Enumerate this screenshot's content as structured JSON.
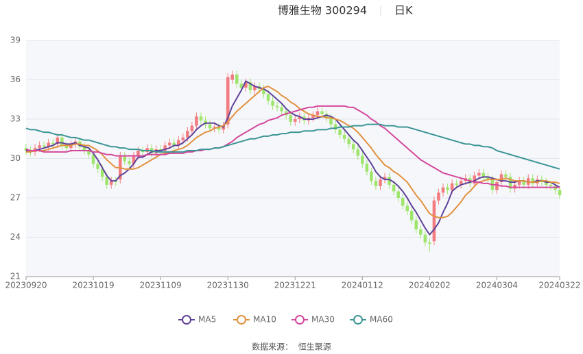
{
  "chart_data": {
    "type": "candlestick",
    "title": "博雅生物 300294",
    "subtitle": "日K",
    "source": "数据来源：  恒生聚源",
    "categories": [
      "20230920",
      null,
      null,
      null,
      null,
      null,
      null,
      null,
      null,
      null,
      null,
      null,
      null,
      null,
      null,
      "20231019",
      null,
      null,
      null,
      null,
      null,
      null,
      null,
      null,
      null,
      null,
      null,
      null,
      null,
      null,
      "20231109",
      null,
      null,
      null,
      null,
      null,
      null,
      null,
      null,
      null,
      null,
      null,
      null,
      null,
      null,
      "20231130",
      null,
      null,
      null,
      null,
      null,
      null,
      null,
      null,
      null,
      null,
      null,
      null,
      null,
      null,
      "20231221",
      null,
      null,
      null,
      null,
      null,
      null,
      null,
      null,
      null,
      null,
      null,
      null,
      null,
      null,
      "20240112",
      null,
      null,
      null,
      null,
      null,
      null,
      null,
      null,
      null,
      null,
      null,
      null,
      null,
      null,
      "20240202",
      null,
      null,
      null,
      null,
      null,
      null,
      null,
      null,
      null,
      null,
      null,
      null,
      null,
      null,
      "20240304",
      null,
      null,
      null,
      null,
      null,
      null,
      null,
      null,
      null,
      null,
      null,
      null,
      null,
      "20240322"
    ],
    "open": [
      30.8,
      30.6,
      30.5,
      30.8,
      31.0,
      30.9,
      31.2,
      31.1,
      31.6,
      31.0,
      30.8,
      31.1,
      31.3,
      30.9,
      30.6,
      30.3,
      29.6,
      29.2,
      28.6,
      28.0,
      28.3,
      28.4,
      30.2,
      29.8,
      29.6,
      30.2,
      30.6,
      30.5,
      30.8,
      30.4,
      30.7,
      30.6,
      31.0,
      31.2,
      31.0,
      31.4,
      31.6,
      32.1,
      32.5,
      33.2,
      32.9,
      32.6,
      32.3,
      32.4,
      32.2,
      32.6,
      36.0,
      36.4,
      35.7,
      35.4,
      35.8,
      35.2,
      35.5,
      35.3,
      34.9,
      34.4,
      34.0,
      33.9,
      33.6,
      33.3,
      32.8,
      33.0,
      33.2,
      32.9,
      33.1,
      33.3,
      33.6,
      33.4,
      33.1,
      32.6,
      32.2,
      31.8,
      31.5,
      31.1,
      30.7,
      30.2,
      29.6,
      29.0,
      28.3,
      27.9,
      28.4,
      28.6,
      28.0,
      27.5,
      27.0,
      26.4,
      26.0,
      25.3,
      24.6,
      24.2,
      23.6,
      23.7,
      26.8,
      27.4,
      27.8,
      27.6,
      28.1,
      28.0,
      28.3,
      28.5,
      28.1,
      28.7,
      28.9,
      28.6,
      28.4,
      27.6,
      28.2,
      28.8,
      28.6,
      27.7,
      28.0,
      28.3,
      28.0,
      28.5,
      28.1,
      28.4,
      28.2,
      28.0,
      27.9,
      27.6
    ],
    "close": [
      30.6,
      30.5,
      30.8,
      31.0,
      30.9,
      31.2,
      31.1,
      31.6,
      31.0,
      30.8,
      31.1,
      31.3,
      30.9,
      30.6,
      30.3,
      29.6,
      29.2,
      28.6,
      28.0,
      28.3,
      28.2,
      30.2,
      29.8,
      29.6,
      30.2,
      30.6,
      30.5,
      30.8,
      30.4,
      30.7,
      30.6,
      31.0,
      31.2,
      31.0,
      31.4,
      31.6,
      32.1,
      32.5,
      33.2,
      32.9,
      32.6,
      32.3,
      32.4,
      32.2,
      32.5,
      36.2,
      36.4,
      35.7,
      35.4,
      35.8,
      35.2,
      35.5,
      35.3,
      34.9,
      34.4,
      34.0,
      33.9,
      33.6,
      33.3,
      32.8,
      33.0,
      33.2,
      32.9,
      33.1,
      33.3,
      33.6,
      33.4,
      33.1,
      32.6,
      32.2,
      31.8,
      31.5,
      31.1,
      30.7,
      30.2,
      29.6,
      29.0,
      28.3,
      27.9,
      28.4,
      28.6,
      28.0,
      27.5,
      27.0,
      26.4,
      26.0,
      25.3,
      24.6,
      24.2,
      23.6,
      23.5,
      26.8,
      27.4,
      27.8,
      27.6,
      28.1,
      28.0,
      28.3,
      28.5,
      28.1,
      28.7,
      28.9,
      28.6,
      28.4,
      27.6,
      28.2,
      28.8,
      28.6,
      27.7,
      28.0,
      28.3,
      28.0,
      28.5,
      28.1,
      28.4,
      28.2,
      28.0,
      27.9,
      27.6,
      27.2
    ],
    "low": [
      30.3,
      30.2,
      30.2,
      30.5,
      30.6,
      30.6,
      30.8,
      30.8,
      30.7,
      30.5,
      30.5,
      30.8,
      30.6,
      30.3,
      30.0,
      29.3,
      28.9,
      28.3,
      27.7,
      27.7,
      27.9,
      28.1,
      29.5,
      29.3,
      29.3,
      29.9,
      30.2,
      30.2,
      30.1,
      30.1,
      30.3,
      30.3,
      30.7,
      30.7,
      30.7,
      31.1,
      31.3,
      31.8,
      32.2,
      32.6,
      32.3,
      32.0,
      32.0,
      31.9,
      31.9,
      32.3,
      35.7,
      35.4,
      35.1,
      35.1,
      34.9,
      34.9,
      35.0,
      34.6,
      34.1,
      33.7,
      33.6,
      33.3,
      33.0,
      32.5,
      32.5,
      32.7,
      32.6,
      32.6,
      32.8,
      33.0,
      33.1,
      32.8,
      32.3,
      31.9,
      31.5,
      31.2,
      30.8,
      30.4,
      29.9,
      29.3,
      28.7,
      28.0,
      27.6,
      27.6,
      28.1,
      27.7,
      27.2,
      26.7,
      26.1,
      25.7,
      25.0,
      24.3,
      23.9,
      23.3,
      22.9,
      23.4,
      26.5,
      27.1,
      27.3,
      27.3,
      27.7,
      27.7,
      28.0,
      27.8,
      27.8,
      28.4,
      28.3,
      28.1,
      27.3,
      27.3,
      27.9,
      28.3,
      27.4,
      27.4,
      27.7,
      27.7,
      27.7,
      27.8,
      27.8,
      27.9,
      27.7,
      27.6,
      27.3,
      26.9
    ],
    "high": [
      31.1,
      30.9,
      31.1,
      31.3,
      31.3,
      31.5,
      31.5,
      31.9,
      31.9,
      31.3,
      31.4,
      31.6,
      31.6,
      31.2,
      30.9,
      30.6,
      29.9,
      29.5,
      28.9,
      28.6,
      28.6,
      30.5,
      30.5,
      30.1,
      30.5,
      30.9,
      30.9,
      31.1,
      31.1,
      31.0,
      31.0,
      31.3,
      31.5,
      31.5,
      31.7,
      31.9,
      32.4,
      32.8,
      33.5,
      33.5,
      33.2,
      32.9,
      32.7,
      32.7,
      32.8,
      36.5,
      36.7,
      36.7,
      36.0,
      36.1,
      36.1,
      35.8,
      35.8,
      35.6,
      35.2,
      34.7,
      34.3,
      34.2,
      33.9,
      33.6,
      33.3,
      33.5,
      33.5,
      33.4,
      33.6,
      33.9,
      33.9,
      33.7,
      33.4,
      32.9,
      32.5,
      32.1,
      31.8,
      31.4,
      31.0,
      30.5,
      29.9,
      29.3,
      28.6,
      28.7,
      28.9,
      28.9,
      28.3,
      27.8,
      27.3,
      26.7,
      26.3,
      25.6,
      24.9,
      24.5,
      23.9,
      27.1,
      27.7,
      28.1,
      28.1,
      28.4,
      28.4,
      28.6,
      28.8,
      28.8,
      29.0,
      29.2,
      29.2,
      28.9,
      28.7,
      28.5,
      29.1,
      29.1,
      28.9,
      28.3,
      28.6,
      28.6,
      28.8,
      28.8,
      28.7,
      28.7,
      28.5,
      28.3,
      28.2,
      27.9
    ],
    "up_color": "#f27c7f",
    "down_color": "#9ee56c",
    "series": [
      {
        "name": "MA5",
        "color": "#5e4299",
        "values": [
          30.6,
          30.6,
          30.6,
          30.7,
          30.8,
          30.9,
          31.0,
          31.2,
          31.2,
          31.1,
          31.1,
          31.2,
          31.0,
          30.9,
          30.8,
          30.4,
          29.9,
          29.3,
          28.7,
          28.3,
          28.3,
          28.7,
          28.9,
          29.2,
          29.6,
          30.1,
          30.1,
          30.3,
          30.5,
          30.6,
          30.6,
          30.7,
          30.8,
          31.0,
          31.0,
          31.2,
          31.5,
          31.8,
          32.2,
          32.5,
          32.7,
          32.7,
          32.7,
          32.5,
          32.4,
          33.1,
          34.0,
          34.6,
          35.2,
          35.9,
          35.7,
          35.5,
          35.4,
          35.3,
          35.1,
          34.8,
          34.5,
          34.2,
          33.8,
          33.5,
          33.3,
          33.2,
          33.0,
          33.0,
          33.0,
          33.1,
          33.2,
          33.3,
          33.2,
          33.0,
          32.6,
          32.2,
          31.8,
          31.4,
          31.1,
          30.6,
          30.1,
          29.6,
          29.0,
          28.6,
          28.4,
          28.4,
          28.2,
          27.9,
          27.5,
          27.0,
          26.4,
          25.9,
          25.3,
          24.7,
          24.2,
          24.6,
          25.1,
          25.9,
          26.6,
          27.5,
          27.8,
          28.0,
          28.1,
          28.2,
          28.3,
          28.5,
          28.6,
          28.6,
          28.5,
          28.4,
          28.3,
          28.3,
          28.2,
          28.2,
          28.3,
          28.3,
          28.2,
          28.2,
          28.3,
          28.3,
          28.2,
          28.2,
          28.0,
          27.8
        ]
      },
      {
        "name": "MA10",
        "color": "#e2913f",
        "values": [
          30.5,
          30.5,
          30.6,
          30.6,
          30.6,
          30.7,
          30.8,
          30.9,
          31.0,
          31.0,
          31.0,
          31.1,
          31.1,
          31.0,
          31.0,
          30.8,
          30.6,
          30.3,
          29.9,
          29.6,
          29.3,
          29.3,
          29.2,
          29.2,
          29.2,
          29.3,
          29.5,
          29.7,
          29.9,
          30.1,
          30.3,
          30.4,
          30.5,
          30.6,
          30.7,
          30.8,
          31.0,
          31.3,
          31.6,
          31.8,
          32.0,
          32.1,
          32.3,
          32.4,
          32.5,
          32.8,
          33.2,
          33.6,
          33.9,
          34.2,
          34.5,
          34.8,
          35.1,
          35.4,
          35.5,
          35.3,
          35.1,
          34.8,
          34.6,
          34.3,
          34.1,
          33.8,
          33.6,
          33.4,
          33.3,
          33.2,
          33.2,
          33.1,
          33.1,
          33.0,
          32.9,
          32.7,
          32.5,
          32.3,
          32.0,
          31.6,
          31.2,
          30.8,
          30.3,
          29.9,
          29.5,
          29.3,
          29.0,
          28.8,
          28.5,
          28.2,
          27.7,
          27.2,
          26.8,
          26.3,
          25.8,
          25.6,
          25.5,
          25.5,
          25.6,
          25.9,
          26.3,
          26.7,
          27.2,
          27.5,
          27.9,
          28.2,
          28.3,
          28.4,
          28.4,
          28.4,
          28.4,
          28.5,
          28.4,
          28.3,
          28.3,
          28.3,
          28.2,
          28.2,
          28.2,
          28.3,
          28.3,
          28.2,
          28.2,
          28.1
        ]
      },
      {
        "name": "MA30",
        "color": "#d4489c",
        "values": [
          30.7,
          30.6,
          30.6,
          30.6,
          30.5,
          30.5,
          30.5,
          30.5,
          30.5,
          30.5,
          30.6,
          30.6,
          30.6,
          30.6,
          30.6,
          30.5,
          30.5,
          30.4,
          30.3,
          30.3,
          30.2,
          30.2,
          30.2,
          30.2,
          30.2,
          30.2,
          30.2,
          30.3,
          30.3,
          30.3,
          30.3,
          30.3,
          30.4,
          30.4,
          30.4,
          30.4,
          30.5,
          30.5,
          30.6,
          30.6,
          30.7,
          30.7,
          30.8,
          30.8,
          30.9,
          31.1,
          31.3,
          31.6,
          31.8,
          32.0,
          32.2,
          32.4,
          32.6,
          32.7,
          32.9,
          33.0,
          33.1,
          33.3,
          33.4,
          33.5,
          33.6,
          33.7,
          33.8,
          33.9,
          33.9,
          34.0,
          34.0,
          34.0,
          34.0,
          34.0,
          34.0,
          34.0,
          33.9,
          33.9,
          33.7,
          33.5,
          33.3,
          33.0,
          32.8,
          32.5,
          32.3,
          32.0,
          31.7,
          31.4,
          31.1,
          30.8,
          30.5,
          30.2,
          29.9,
          29.7,
          29.5,
          29.3,
          29.1,
          28.9,
          28.8,
          28.7,
          28.6,
          28.5,
          28.4,
          28.3,
          28.2,
          28.2,
          28.1,
          28.1,
          28.0,
          28.0,
          27.9,
          27.9,
          27.8,
          27.8,
          27.8,
          27.8,
          27.8,
          27.8,
          27.8,
          27.8,
          27.8,
          27.8,
          27.8,
          27.8
        ]
      },
      {
        "name": "MA60",
        "color": "#3b9595",
        "values": [
          32.3,
          32.2,
          32.2,
          32.1,
          32.0,
          32.0,
          31.9,
          31.8,
          31.8,
          31.7,
          31.6,
          31.6,
          31.5,
          31.4,
          31.4,
          31.3,
          31.2,
          31.1,
          31.0,
          30.9,
          30.9,
          30.8,
          30.8,
          30.7,
          30.7,
          30.7,
          30.6,
          30.6,
          30.6,
          30.5,
          30.5,
          30.5,
          30.5,
          30.5,
          30.5,
          30.5,
          30.6,
          30.6,
          30.6,
          30.7,
          30.7,
          30.7,
          30.8,
          30.8,
          30.9,
          31.0,
          31.1,
          31.2,
          31.3,
          31.4,
          31.5,
          31.5,
          31.6,
          31.7,
          31.7,
          31.8,
          31.8,
          31.9,
          31.9,
          32.0,
          32.0,
          32.0,
          32.1,
          32.1,
          32.1,
          32.2,
          32.2,
          32.2,
          32.3,
          32.3,
          32.4,
          32.4,
          32.4,
          32.5,
          32.5,
          32.5,
          32.6,
          32.6,
          32.6,
          32.6,
          32.5,
          32.5,
          32.5,
          32.4,
          32.4,
          32.4,
          32.3,
          32.2,
          32.1,
          32.0,
          31.9,
          31.8,
          31.7,
          31.6,
          31.5,
          31.4,
          31.3,
          31.2,
          31.1,
          31.1,
          31.0,
          31.0,
          30.9,
          30.9,
          30.8,
          30.6,
          30.5,
          30.4,
          30.3,
          30.2,
          30.1,
          30.0,
          29.9,
          29.8,
          29.7,
          29.6,
          29.5,
          29.4,
          29.3,
          29.2
        ]
      }
    ],
    "ylim": [
      21,
      39
    ],
    "yticks": [
      21,
      24,
      27,
      30,
      33,
      36,
      39
    ],
    "grid": true
  }
}
